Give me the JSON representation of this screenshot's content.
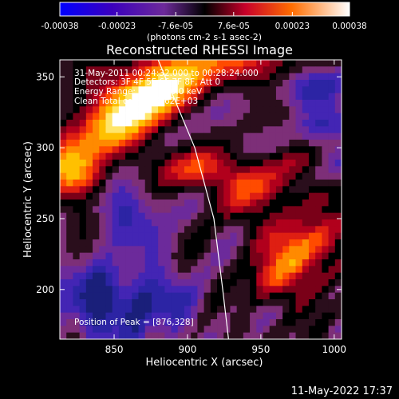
{
  "chart_data": {
    "type": "heatmap",
    "title": "Reconstructed RHESSI Image",
    "xlabel": "Heliocentric X (arcsec)",
    "ylabel": "Heliocentric Y (arcsec)",
    "xlim": [
      813,
      1005
    ],
    "ylim": [
      165,
      362
    ],
    "x_ticks": [
      {
        "value": 850,
        "label": "850"
      },
      {
        "value": 900,
        "label": "900"
      },
      {
        "value": 950,
        "label": "950"
      },
      {
        "value": 1000,
        "label": "1000"
      }
    ],
    "y_ticks": [
      {
        "value": 200,
        "label": "200"
      },
      {
        "value": 250,
        "label": "250"
      },
      {
        "value": 300,
        "label": "300"
      },
      {
        "value": 350,
        "label": "350"
      }
    ],
    "colorbar": {
      "min": -0.00038,
      "max": 0.00038,
      "ticks": [
        {
          "value": -0.00038,
          "label": "-0.00038"
        },
        {
          "value": -0.00023,
          "label": "-0.00023"
        },
        {
          "value": -7.6e-05,
          "label": "-7.6e-05"
        },
        {
          "value": 7.6e-05,
          "label": "7.6e-05"
        },
        {
          "value": 0.00023,
          "label": "0.00023"
        },
        {
          "value": 0.00038,
          "label": "0.00038"
        }
      ],
      "unit_label": "(photons cm-2 s-1 asec-2)"
    },
    "annotations": [
      "31-May-2011 00:24:32.000 to 00:28:24.000",
      "Detectors: 3F 4F 5F 6F 7F 8F, Att 0",
      "Energy Range: 25.0 - 50.0 keV",
      "Clean    Total counts: 6.62E+03"
    ],
    "peak_label": "Position of Peak = [876,328]",
    "peak": {
      "x": 876,
      "y": 328
    },
    "limb_line": [
      {
        "x": 880,
        "y": 362
      },
      {
        "x": 905,
        "y": 300
      },
      {
        "x": 918,
        "y": 250
      },
      {
        "x": 924,
        "y": 200
      },
      {
        "x": 928,
        "y": 165
      }
    ],
    "footer": "11-May-2022 17:37"
  }
}
